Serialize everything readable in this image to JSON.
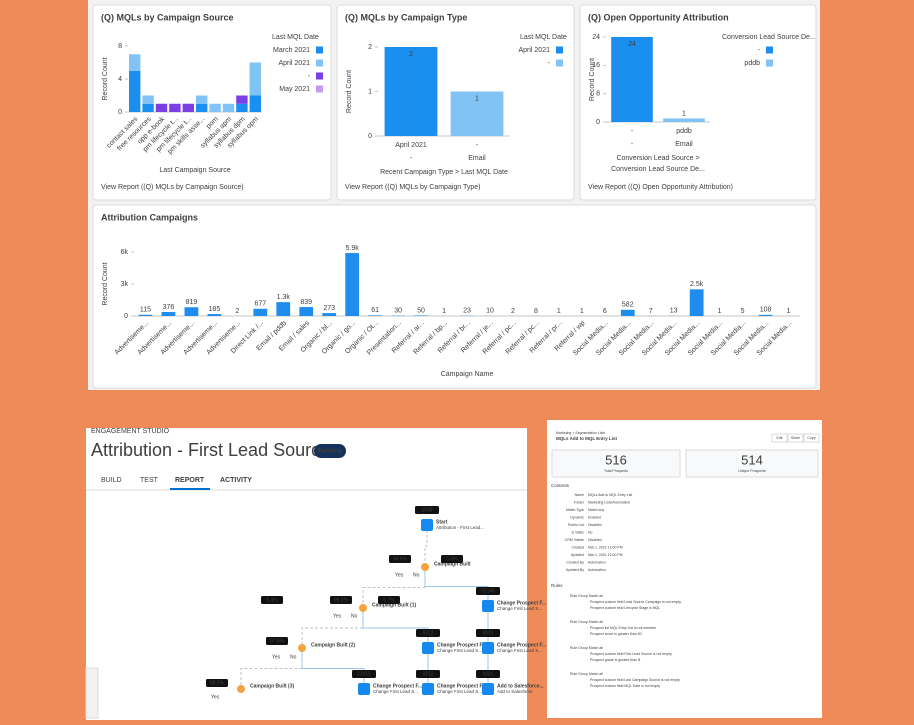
{
  "chart_data": [
    {
      "type": "bar",
      "title": "(Q) MQLs by Campaign Source",
      "ylabel": "Record Count",
      "xlabel": "Last Campaign Source",
      "legend_title": "Last MQL Date",
      "link": "View Report ((Q) MQLs by Campaign Source)",
      "stacked": true,
      "ylim": [
        0,
        8
      ],
      "yticks": [
        0,
        4,
        8
      ],
      "categories": [
        "contact sales",
        "free resources",
        "opp e-book",
        "pm lifecycle t...",
        "pm lifecycle t...",
        "pm skills asse...",
        "pom",
        "syllabus apm",
        "syllabus dpm",
        "syllabus opm"
      ],
      "series": [
        {
          "name": "March 2021",
          "color": "#1b8ff0",
          "values": [
            5,
            1,
            0,
            0,
            0,
            1,
            0,
            0,
            1,
            2
          ]
        },
        {
          "name": "April 2021",
          "color": "#82c3f5",
          "values": [
            2,
            1,
            0,
            0,
            0,
            1,
            1,
            1,
            0,
            4
          ]
        },
        {
          "name": "-",
          "color": "#7b3fe4",
          "values": [
            0,
            0,
            1,
            1,
            1,
            0,
            0,
            0,
            1,
            0
          ]
        },
        {
          "name": "May 2021",
          "color": "#c39bf3",
          "values": [
            0,
            0,
            0,
            0,
            0,
            0,
            0,
            0,
            0,
            0
          ]
        }
      ]
    },
    {
      "type": "bar",
      "title": "(Q) MQLs by Campaign Type",
      "ylabel": "Record Count",
      "xlabel": "Recent Campaign Type > Last MQL Date",
      "legend_title": "Last MQL Date",
      "link": "View Report ((Q) MQLs by Campaign Type)",
      "stacked": true,
      "data_labels": true,
      "ylim": [
        0,
        2
      ],
      "yticks": [
        0,
        1,
        2
      ],
      "categories": [
        "April 2021",
        "-"
      ],
      "groups": [
        "-",
        "Email"
      ],
      "series": [
        {
          "name": "April 2021",
          "color": "#1b8ff0",
          "values": [
            2,
            null
          ]
        },
        {
          "name": "-",
          "color": "#82c3f5",
          "values": [
            null,
            1
          ]
        }
      ]
    },
    {
      "type": "bar",
      "title": "(Q) Open Opportunity Attribution",
      "ylabel": "Record Count",
      "xlabel": [
        "Conversion Lead Source >",
        "Conversion Lead Source De..."
      ],
      "legend_title": "Conversion Lead Source De...",
      "link": "View Report ((Q) Open Opportunity Attribution)",
      "stacked": true,
      "data_labels": true,
      "ylim": [
        0,
        24
      ],
      "yticks": [
        0,
        8,
        16,
        24
      ],
      "categories": [
        "-",
        "pddb"
      ],
      "groups": [
        "-",
        "Email"
      ],
      "series": [
        {
          "name": "-",
          "color": "#1b8ff0",
          "values": [
            24,
            null
          ]
        },
        {
          "name": "pddb",
          "color": "#82c3f5",
          "values": [
            null,
            1
          ]
        }
      ]
    },
    {
      "type": "bar",
      "title": "Attribution Campaigns",
      "ylabel": "Record Count",
      "xlabel": "Campaign Name",
      "color": "#1f8ded",
      "data_labels": true,
      "ylim": [
        0,
        6000
      ],
      "yticks": [
        0,
        {
          "value": 3000,
          "label": "3k"
        },
        {
          "value": 6000,
          "label": "6k"
        }
      ],
      "categories": [
        "Advertiseme...",
        "Advertiseme...",
        "Advertiseme...",
        "Advertiseme...",
        "Advertiseme...",
        "Direct Link /...",
        "Email / pddb",
        "Email / sales",
        "Organic / bl...",
        "Organic / go...",
        "Organic / Ot...",
        "Presentation...",
        "Referral / ar...",
        "Referral / bp...",
        "Referral / br...",
        "Referral / je...",
        "Referral / pc...",
        "Referral / pc...",
        "Referral / pr...",
        "Referral / wp",
        "Social Media...",
        "Social Media...",
        "Social Media...",
        "Social Media...",
        "Social Media...",
        "Social Media...",
        "Social Media...",
        "Social Media...",
        "Social Media..."
      ],
      "values": [
        115,
        376,
        819,
        185,
        2,
        677,
        1300,
        839,
        273,
        5900,
        61,
        30,
        50,
        1,
        23,
        10,
        2,
        8,
        1,
        1,
        6,
        582,
        7,
        13,
        2500,
        1,
        5,
        108,
        1
      ],
      "value_labels": [
        "115",
        "376",
        "819",
        "185",
        "2",
        "677",
        "1.3k",
        "839",
        "273",
        "5.9k",
        "61",
        "30",
        "50",
        "1",
        "23",
        "10",
        "2",
        "8",
        "1",
        "1",
        "6",
        "582",
        "7",
        "13",
        "2.5k",
        "1",
        "5",
        "108",
        "1"
      ]
    }
  ],
  "engagement": {
    "section": "ENGAGEMENT STUDIO",
    "title": "Attribution - First Lead Source",
    "status": "Running",
    "tabs": [
      "BUILD",
      "TEST",
      "REPORT",
      "ACTIVITY"
    ],
    "nodes": [
      {
        "label": "Start",
        "detail": "Attribution - First Lead...",
        "badge": "1508"
      },
      {
        "label": "Campaign Built"
      },
      {
        "label": "Campaign Built (1)"
      },
      {
        "label": "Campaign Built (2)"
      },
      {
        "label": "Campaign Built (3)"
      },
      {
        "label": "Change Prospect F...",
        "detail": "Change First Lead S...",
        "badge": "52146"
      },
      {
        "label": "Change Prospect F...",
        "detail": "Change First Lead S...",
        "badge": "9312"
      },
      {
        "label": "Change Prospect F...",
        "detail": "Change First Lead S...",
        "badge": "9091"
      },
      {
        "label": "Change Prospect F...",
        "detail": "Change First Lead S...",
        "badge": "22815"
      },
      {
        "label": "Change Prospect F...",
        "detail": "Change First Lead S...",
        "badge": "9312"
      },
      {
        "label": "Add to Salesforce...",
        "detail": "Add to Salesforce",
        "badge": "9091"
      }
    ],
    "percents": [
      "94.6%",
      "5.0%",
      "99.2%",
      "5.7%",
      "97.6%",
      "1.4%",
      "98.5%"
    ],
    "branches": [
      "Yes",
      "No"
    ]
  },
  "list_view": {
    "breadcrumb": "Marketing > Segmentation Lists",
    "title": "MQLs Add to MQL Entry List",
    "buttons": [
      "Edit",
      "Share",
      "Copy"
    ],
    "stats": [
      {
        "value": 516,
        "label": "Total Prospects"
      },
      {
        "value": 514,
        "label": "Unique Prospects"
      }
    ],
    "contents_heading": "Contents",
    "fields": [
      [
        "Name",
        "MQLs Add to MQL Entry List"
      ],
      [
        "Folder",
        "Marketing Lists/Automation"
      ],
      [
        "Match Type",
        "Match any"
      ],
      [
        "Dynamic",
        "Enabled"
      ],
      [
        "Public List",
        "Disabled"
      ],
      [
        "Is Static",
        "No"
      ],
      [
        "CRM Visible",
        "Disabled"
      ],
      [
        "Created",
        "Mar 1, 2021 12:00 PM"
      ],
      [
        "Updated",
        "Mar 1, 2021 12:00 PM"
      ],
      [
        "Created By",
        "Automation"
      ],
      [
        "Updated By",
        "Automation"
      ]
    ],
    "rules_heading": "Rules",
    "rules": [
      [
        "Rule Group  Match all",
        "Prospect custom field Lead Source Campaign is not empty",
        "Prospect custom field Lifecycle Stage is MQL"
      ],
      [
        "Rule Group  Match all",
        "Prospect list MQL Entry List is not member",
        "Prospect score is greater than 50"
      ],
      [
        "Rule Group  Match all",
        "Prospect custom field First Lead Source is not empty",
        "Prospect grade is greater than B"
      ],
      [
        "Rule Group  Match all",
        "Prospect custom field Last Campaign Source is not empty",
        "Prospect custom field MQL Date is not empty"
      ]
    ]
  }
}
